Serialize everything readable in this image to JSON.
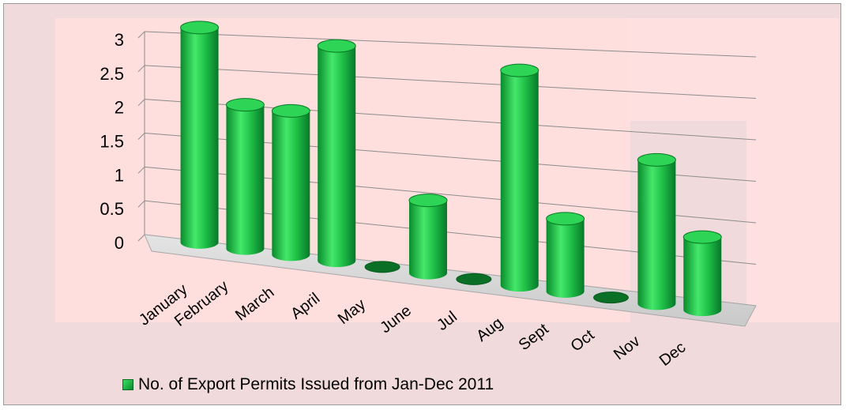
{
  "chart_data": {
    "type": "bar",
    "style": "3d-cylinder",
    "categories": [
      "January",
      "February",
      "March",
      "April",
      "May",
      "June",
      "Jul",
      "Aug",
      "Sept",
      "Oct",
      "Nov",
      "Dec"
    ],
    "series": [
      {
        "name": "No. of Export Permits Issued from Jan-Dec 2011",
        "values": [
          3,
          2,
          2,
          3,
          0,
          1,
          0,
          3,
          1,
          0,
          2,
          1
        ]
      }
    ],
    "y_ticks": [
      "0",
      "0.5",
      "1",
      "1.5",
      "2",
      "2.5",
      "3"
    ],
    "ylim": [
      0,
      3
    ],
    "grid": true,
    "legend_position": "bottom",
    "colors": {
      "bar_dark": "#0a8a2c",
      "bar_light": "#44e86a",
      "bar_top": "#2ed455",
      "bar_top_edge": "#0a7a26",
      "plot_background": "#ffdede",
      "chart_background": "#f0dadb",
      "floor": "#d9d9d9",
      "gridline": "#8c8c8c"
    }
  }
}
